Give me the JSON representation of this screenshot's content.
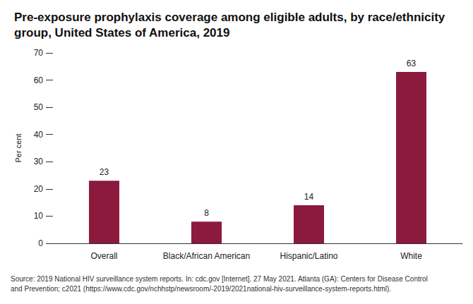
{
  "chart_data": {
    "type": "bar",
    "title": "Pre-exposure prophylaxis coverage among eligible adults, by race/ethnicity\ngroup, United States of America, 2019",
    "y_label": "Per cent",
    "categories": [
      "Overall",
      "Black/African American",
      "Hispanic/Latino",
      "White"
    ],
    "values": [
      23,
      8,
      14,
      63
    ],
    "color": "#8c1a3c",
    "ylim": [
      0,
      70
    ],
    "yticks": [
      0,
      10,
      20,
      30,
      40,
      50,
      60,
      70
    ],
    "grid": false,
    "data_labels": true,
    "source": "Source: 2019 National HIV surveillance system reports. In: cdc.gov [Internet]. 27 May 2021. Atlanta (GA): Centers for Disease Control\nand Prevention; c2021 (https://www.cdc.gov/nchhstp/newsroom/-2019/2021national-hiv-surveillance-system-reports.html)."
  }
}
